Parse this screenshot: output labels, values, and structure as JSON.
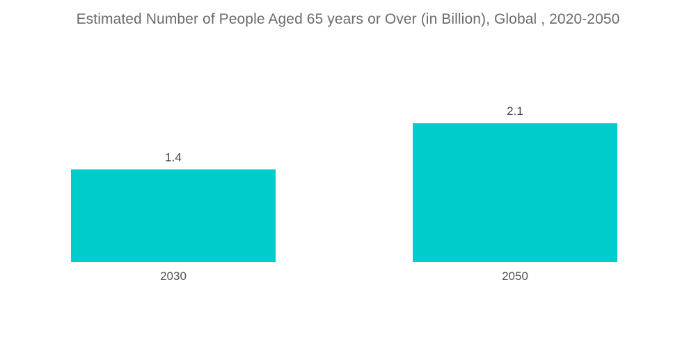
{
  "chart_data": {
    "type": "bar",
    "title": "Estimated Number of People Aged 65 years or Over (in Billion), Global , 2020-2050",
    "categories": [
      "2030",
      "2050"
    ],
    "values": [
      1.4,
      2.1
    ],
    "data_labels": [
      "1.4",
      "2.1"
    ],
    "xlabel": "",
    "ylabel": "",
    "ylim": [
      0,
      2.1
    ],
    "grid": false,
    "legend": "none",
    "colors": {
      "bar": "#00CCCC"
    }
  }
}
